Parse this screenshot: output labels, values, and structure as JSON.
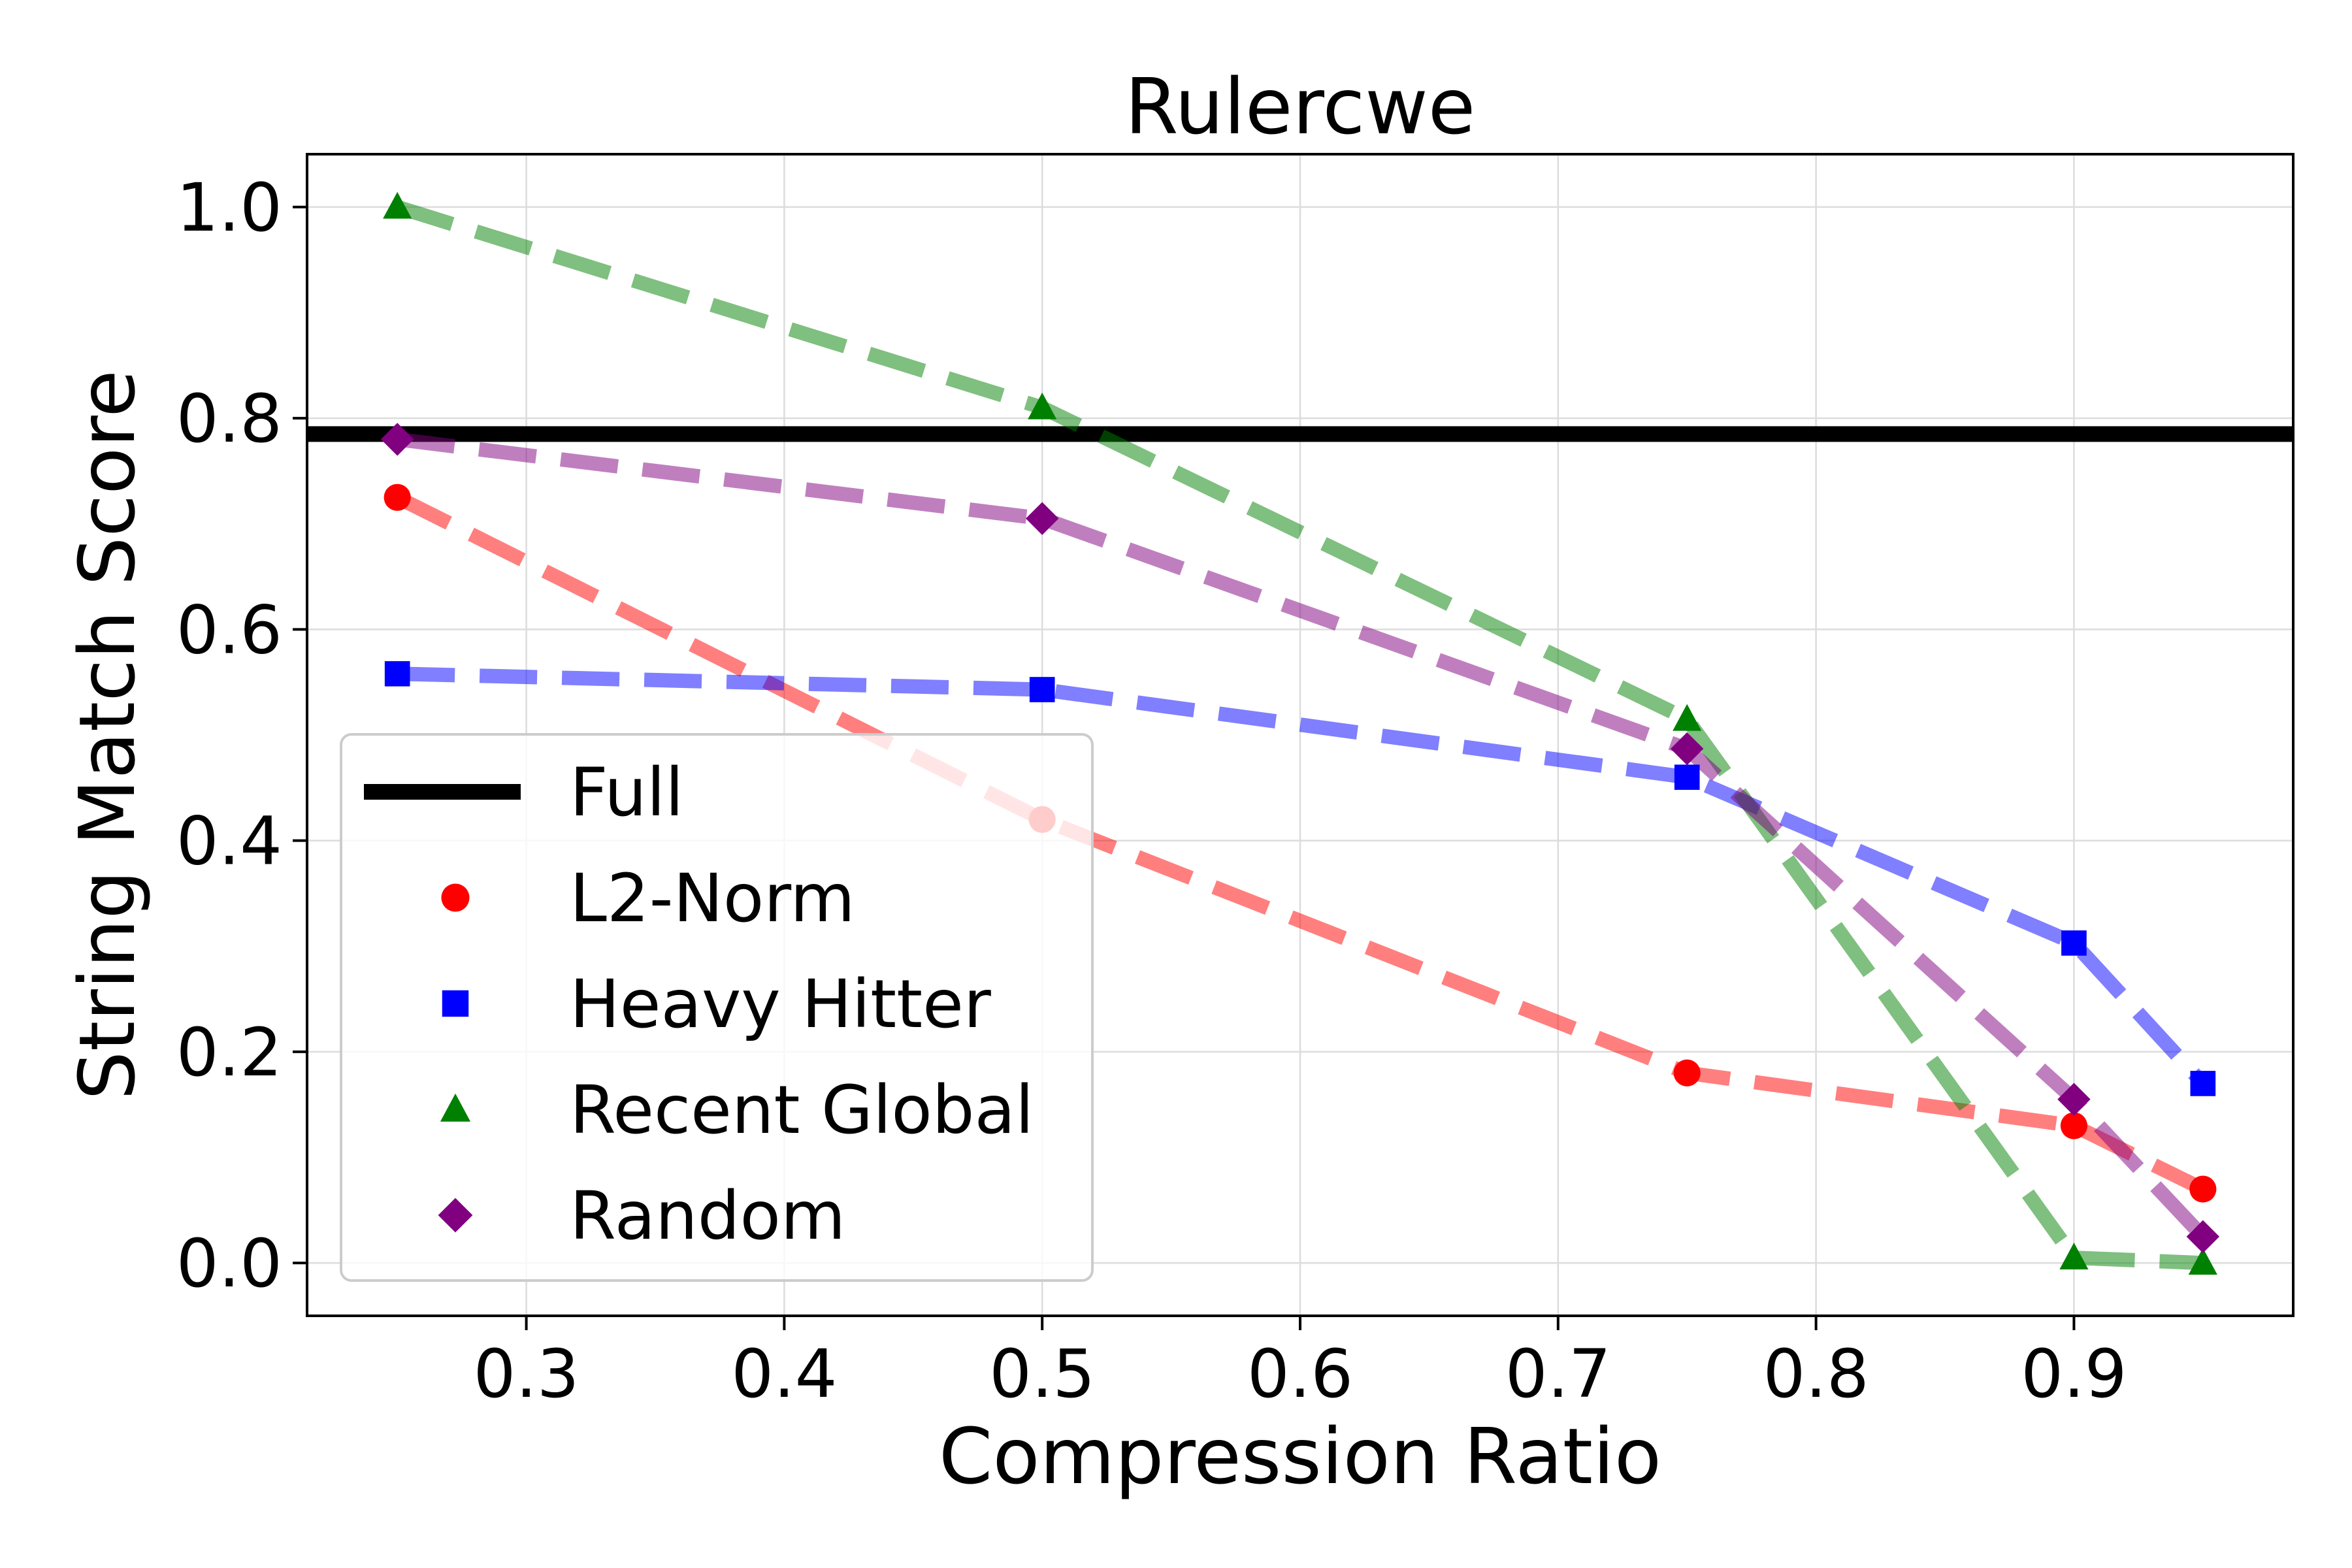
{
  "chart_data": {
    "type": "line",
    "title": "Rulercwe",
    "xlabel": "Compression Ratio",
    "ylabel": "String Match Score",
    "xlim": [
      0.215,
      0.985
    ],
    "ylim": [
      -0.05,
      1.05
    ],
    "xticks": [
      0.3,
      0.4,
      0.5,
      0.6,
      0.7,
      0.8,
      0.9
    ],
    "xtick_labels": [
      "0.3",
      "0.4",
      "0.5",
      "0.6",
      "0.7",
      "0.8",
      "0.9"
    ],
    "yticks": [
      0.0,
      0.2,
      0.4,
      0.6,
      0.8,
      1.0
    ],
    "ytick_labels": [
      "0.0",
      "0.2",
      "0.4",
      "0.6",
      "0.8",
      "1.0"
    ],
    "grid": true,
    "legend_position": "lower-left",
    "baseline": {
      "name": "Full",
      "y": 0.785,
      "color": "#000000"
    },
    "series": [
      {
        "name": "L2-Norm",
        "color": "#ff0000",
        "marker": "circle",
        "x": [
          0.25,
          0.5,
          0.75,
          0.9,
          0.95
        ],
        "y": [
          0.725,
          0.42,
          0.18,
          0.13,
          0.07
        ]
      },
      {
        "name": "Heavy Hitter",
        "color": "#0000ff",
        "marker": "square",
        "x": [
          0.25,
          0.5,
          0.75,
          0.9,
          0.95
        ],
        "y": [
          0.558,
          0.543,
          0.46,
          0.303,
          0.17
        ]
      },
      {
        "name": "Recent Global",
        "color": "#008000",
        "marker": "triangle",
        "x": [
          0.25,
          0.5,
          0.75,
          0.9,
          0.95
        ],
        "y": [
          1.0,
          0.81,
          0.515,
          0.005,
          0.0
        ]
      },
      {
        "name": "Random",
        "color": "#800080",
        "marker": "diamond",
        "x": [
          0.25,
          0.5,
          0.75,
          0.9,
          0.95
        ],
        "y": [
          0.78,
          0.705,
          0.487,
          0.155,
          0.025
        ]
      }
    ]
  }
}
